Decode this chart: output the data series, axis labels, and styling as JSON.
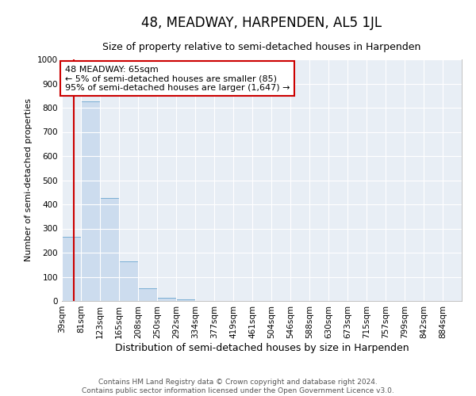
{
  "title": "48, MEADWAY, HARPENDEN, AL5 1JL",
  "subtitle": "Size of property relative to semi-detached houses in Harpenden",
  "xlabel": "Distribution of semi-detached houses by size in Harpenden",
  "ylabel": "Number of semi-detached properties",
  "bin_labels": [
    "39sqm",
    "81sqm",
    "123sqm",
    "165sqm",
    "208sqm",
    "250sqm",
    "292sqm",
    "334sqm",
    "377sqm",
    "419sqm",
    "461sqm",
    "504sqm",
    "546sqm",
    "588sqm",
    "630sqm",
    "673sqm",
    "715sqm",
    "757sqm",
    "799sqm",
    "842sqm",
    "884sqm"
  ],
  "bar_values": [
    265,
    825,
    425,
    165,
    52,
    13,
    6,
    0,
    0,
    0,
    0,
    0,
    0,
    0,
    0,
    0,
    0,
    0,
    0,
    0,
    0
  ],
  "bar_color": "#ccdcee",
  "bar_edge_color": "#7aaed4",
  "property_line_color": "#cc0000",
  "annotation_box_color": "#ffffff",
  "annotation_box_edge": "#cc0000",
  "smaller_pct": 5,
  "smaller_count": 85,
  "larger_pct": 95,
  "larger_count": 1647,
  "ylim": [
    0,
    1000
  ],
  "yticks": [
    0,
    100,
    200,
    300,
    400,
    500,
    600,
    700,
    800,
    900,
    1000
  ],
  "background_color": "#e8eef5",
  "grid_color": "#ffffff",
  "title_fontsize": 12,
  "subtitle_fontsize": 9,
  "xlabel_fontsize": 9,
  "ylabel_fontsize": 8,
  "tick_fontsize": 7.5,
  "footer_line1": "Contains HM Land Registry data © Crown copyright and database right 2024.",
  "footer_line2": "Contains public sector information licensed under the Open Government Licence v3.0."
}
